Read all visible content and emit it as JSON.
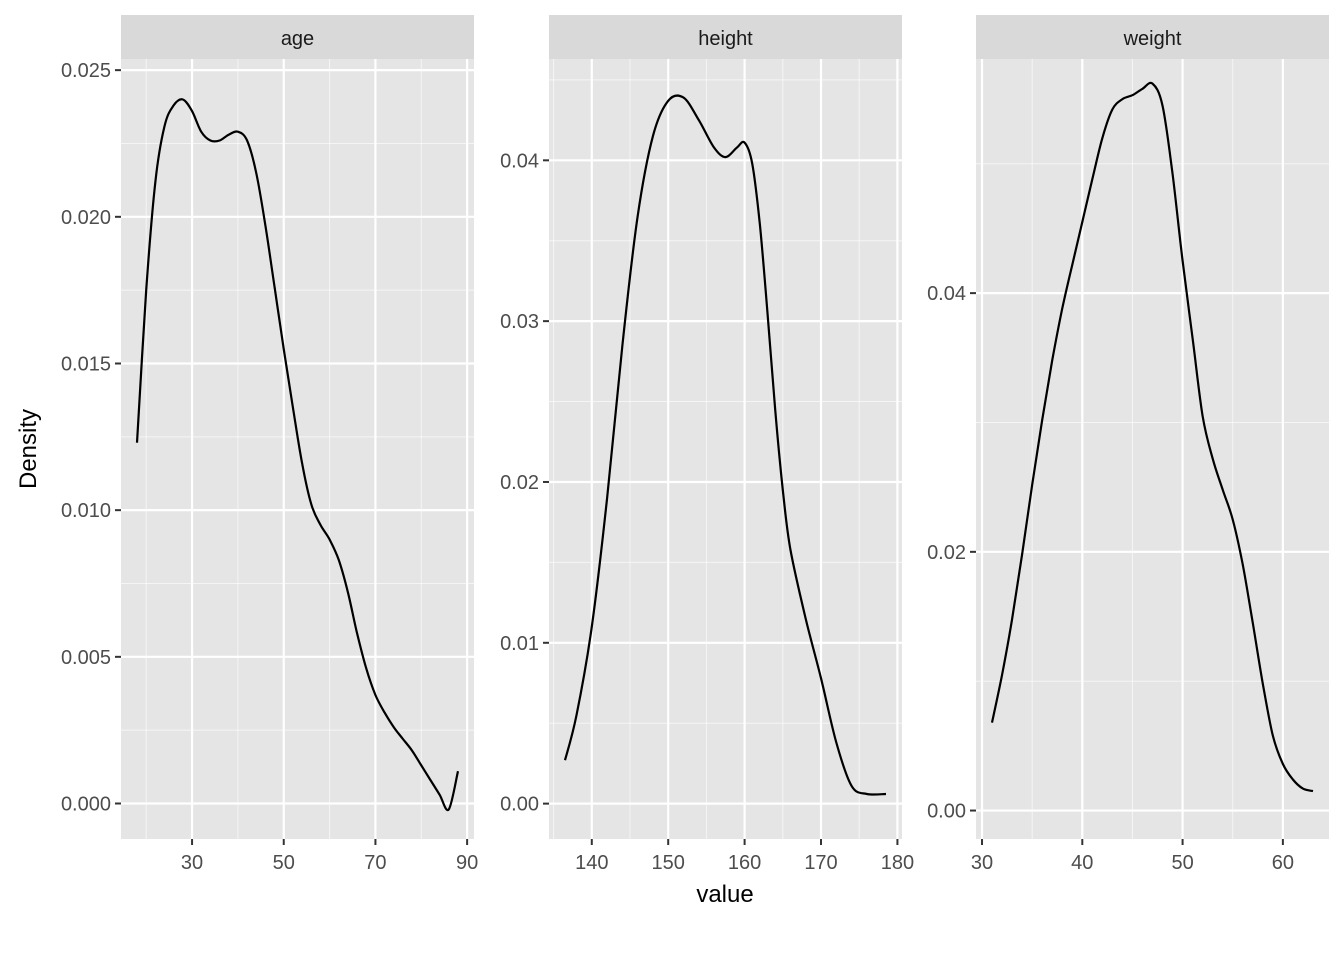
{
  "chart_data": {
    "type": "line",
    "xlabel": "value",
    "ylabel": "Density",
    "grid": true,
    "panel_background": "#e5e5e5",
    "strip_background": "#d9d9d9",
    "grid_color": "#ffffff",
    "line_color": "#000000",
    "panels": [
      {
        "name": "age",
        "xlim": [
          14.5,
          91.5
        ],
        "ylim": [
          -0.00121,
          0.02538
        ],
        "xticks": [
          30,
          50,
          70,
          90
        ],
        "xtick_labels": [
          "30",
          "50",
          "70",
          "90"
        ],
        "yticks": [
          0,
          0.005,
          0.01,
          0.015,
          0.02,
          0.025
        ],
        "ytick_labels": [
          "0.000",
          "0.005",
          "0.010",
          "0.015",
          "0.020",
          "0.025"
        ],
        "x": [
          18,
          20,
          22,
          24,
          26,
          28,
          30,
          32,
          34,
          36,
          38,
          40,
          42,
          44,
          46,
          48,
          50,
          52,
          54,
          56,
          58,
          60,
          62,
          64,
          66,
          68,
          70,
          72,
          74,
          76,
          78,
          80,
          82,
          84,
          86,
          88
        ],
        "y": [
          0.0123,
          0.0175,
          0.0212,
          0.0231,
          0.0238,
          0.024,
          0.0236,
          0.0229,
          0.0226,
          0.0226,
          0.0228,
          0.0229,
          0.0226,
          0.0215,
          0.0197,
          0.0176,
          0.0155,
          0.0135,
          0.0116,
          0.0102,
          0.0095,
          0.009,
          0.0083,
          0.0072,
          0.0058,
          0.0046,
          0.0037,
          0.0031,
          0.0026,
          0.0022,
          0.0018,
          0.0013,
          0.0008,
          0.0003,
          -0.0002,
          0.0011
        ]
      },
      {
        "name": "height",
        "xlim": [
          134.4,
          180.6
        ],
        "ylim": [
          -0.0022,
          0.0463
        ],
        "xticks": [
          140,
          150,
          160,
          170,
          180
        ],
        "xtick_labels": [
          "140",
          "150",
          "160",
          "170",
          "180"
        ],
        "yticks": [
          0,
          0.01,
          0.02,
          0.03,
          0.04
        ],
        "ytick_labels": [
          "0.00",
          "0.01",
          "0.02",
          "0.03",
          "0.04"
        ],
        "x": [
          136.5,
          138,
          140,
          142,
          144,
          146,
          148,
          150,
          152,
          154,
          156,
          157.5,
          159,
          160,
          161,
          162,
          163,
          164,
          165,
          166,
          168,
          170,
          172,
          174,
          176,
          178.5
        ],
        "y": [
          0.0027,
          0.0055,
          0.011,
          0.019,
          0.0285,
          0.0365,
          0.0415,
          0.0437,
          0.0439,
          0.0425,
          0.0408,
          0.0402,
          0.0408,
          0.0411,
          0.0398,
          0.036,
          0.0305,
          0.0245,
          0.0195,
          0.0158,
          0.0115,
          0.0078,
          0.0038,
          0.0011,
          0.0006,
          0.0006
        ]
      },
      {
        "name": "weight",
        "xlim": [
          29.4,
          64.6
        ],
        "ylim": [
          -0.0022,
          0.0581
        ],
        "xticks": [
          30,
          40,
          50,
          60
        ],
        "xtick_labels": [
          "30",
          "40",
          "50",
          "60"
        ],
        "yticks": [
          0,
          0.02,
          0.04
        ],
        "ytick_labels": [
          "0.00",
          "0.02",
          "0.04"
        ],
        "x": [
          31,
          32,
          33,
          34,
          35,
          36,
          37,
          38,
          39,
          40,
          41,
          42,
          43,
          44,
          45,
          46,
          47,
          48,
          49,
          50,
          51,
          52,
          53,
          54,
          55,
          56,
          57,
          58,
          59,
          60,
          61,
          62,
          63
        ],
        "y": [
          0.0068,
          0.0105,
          0.0148,
          0.0198,
          0.0252,
          0.0302,
          0.0348,
          0.0388,
          0.0422,
          0.0455,
          0.0488,
          0.052,
          0.0542,
          0.055,
          0.0553,
          0.0558,
          0.0562,
          0.0545,
          0.0492,
          0.0425,
          0.0365,
          0.0305,
          0.0272,
          0.0248,
          0.0225,
          0.019,
          0.0145,
          0.0098,
          0.0058,
          0.0036,
          0.0024,
          0.0017,
          0.0015
        ]
      }
    ]
  }
}
